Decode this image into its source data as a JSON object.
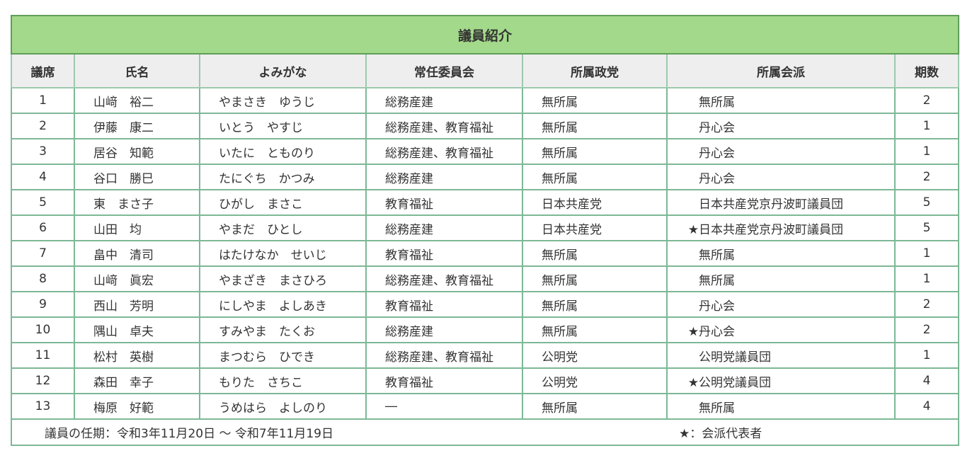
{
  "title": "議員紹介",
  "headers": [
    "議席",
    "氏名",
    "よみがな",
    "常任委員会",
    "所属政党",
    "所属会派",
    "期数"
  ],
  "rows": [
    {
      "seat": "1",
      "name": "山﨑　裕二",
      "kana": "やまさき　ゆうじ",
      "committee": "総務産建",
      "party": "無所属",
      "star": "",
      "faction": "無所属",
      "terms": "2"
    },
    {
      "seat": "2",
      "name": "伊藤　康二",
      "kana": "いとう　やすじ",
      "committee": "総務産建、教育福祉",
      "party": "無所属",
      "star": "",
      "faction": "丹心会",
      "terms": "1"
    },
    {
      "seat": "3",
      "name": "居谷　知範",
      "kana": "いたに　とものり",
      "committee": "総務産建、教育福祉",
      "party": "無所属",
      "star": "",
      "faction": "丹心会",
      "terms": "1"
    },
    {
      "seat": "4",
      "name": "谷口　勝巳",
      "kana": "たにぐち　かつみ",
      "committee": "総務産建",
      "party": "無所属",
      "star": "",
      "faction": "丹心会",
      "terms": "2"
    },
    {
      "seat": "5",
      "name": "東　まさ子",
      "kana": "ひがし　まさこ",
      "committee": "教育福祉",
      "party": "日本共産党",
      "star": "",
      "faction": "日本共産党京丹波町議員団",
      "terms": "5"
    },
    {
      "seat": "6",
      "name": "山田　均",
      "kana": "やまだ　ひとし",
      "committee": "総務産建",
      "party": "日本共産党",
      "star": "★",
      "faction": "日本共産党京丹波町議員団",
      "terms": "5"
    },
    {
      "seat": "7",
      "name": "畠中　清司",
      "kana": "はたけなか　せいじ",
      "committee": "教育福祉",
      "party": "無所属",
      "star": "",
      "faction": "無所属",
      "terms": "1"
    },
    {
      "seat": "8",
      "name": "山﨑　眞宏",
      "kana": "やまざき　まさひろ",
      "committee": "総務産建、教育福祉",
      "party": "無所属",
      "star": "",
      "faction": "無所属",
      "terms": "1"
    },
    {
      "seat": "9",
      "name": "西山　芳明",
      "kana": "にしやま　よしあき",
      "committee": "教育福祉",
      "party": "無所属",
      "star": "",
      "faction": "丹心会",
      "terms": "2"
    },
    {
      "seat": "10",
      "name": "隅山　卓夫",
      "kana": "すみやま　たくお",
      "committee": "総務産建",
      "party": "無所属",
      "star": "★",
      "faction": "丹心会",
      "terms": "2"
    },
    {
      "seat": "11",
      "name": "松村　英樹",
      "kana": "まつむら　ひでき",
      "committee": "総務産建、教育福祉",
      "party": "公明党",
      "star": "",
      "faction": "公明党議員団",
      "terms": "1"
    },
    {
      "seat": "12",
      "name": "森田　幸子",
      "kana": "もりた　さちこ",
      "committee": "教育福祉",
      "party": "公明党",
      "star": "★",
      "faction": "公明党議員団",
      "terms": "4"
    },
    {
      "seat": "13",
      "name": "梅原　好範",
      "kana": "うめはら　よしのり",
      "committee": "―",
      "party": "無所属",
      "star": "",
      "faction": "無所属",
      "terms": "4"
    }
  ],
  "footer": {
    "term": "議員の任期：令和3年11月20日 ～ 令和7年11月19日",
    "legend": "★：会派代表者"
  },
  "colors": {
    "title_bg": "#a3d98a",
    "header_bg": "#eeeeee",
    "border": "#7db896"
  }
}
